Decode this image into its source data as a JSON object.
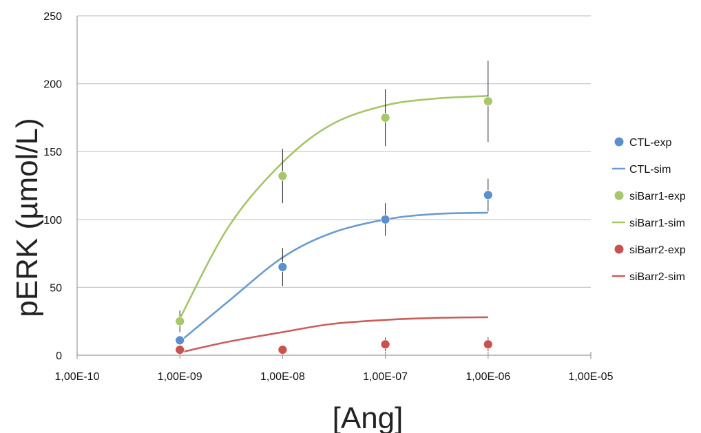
{
  "chart_data": {
    "type": "scatter",
    "xlabel": "[Ang]",
    "ylabel": "pERK (µmol/L)",
    "x_scale": "log",
    "xlim": [
      1e-10,
      1e-05
    ],
    "ylim": [
      0,
      250
    ],
    "x_tick_values": [
      1e-10,
      1e-09,
      1e-08,
      1e-07,
      1e-06,
      1e-05
    ],
    "x_tick_labels": [
      "1,00E-10",
      "1,00E-09",
      "1,00E-08",
      "1,00E-07",
      "1,00E-06",
      "1,00E-05"
    ],
    "y_ticks": [
      0,
      50,
      100,
      150,
      200,
      250
    ],
    "y_tick_labels": [
      "0",
      "50",
      "100",
      "150",
      "200",
      "250"
    ],
    "grid": "horizontal",
    "legend_position": "right",
    "series": [
      {
        "name": "CTL-exp",
        "kind": "points",
        "color": "#5b8fcf",
        "x": [
          1e-09,
          1e-08,
          1e-07,
          1e-06
        ],
        "y": [
          11,
          65,
          100,
          118
        ],
        "error": [
          0,
          14,
          12,
          12
        ]
      },
      {
        "name": "CTL-sim",
        "kind": "line",
        "color": "#6a9bd1",
        "x": [
          1e-09,
          3e-09,
          1e-08,
          3e-08,
          1e-07,
          3e-07,
          1e-06
        ],
        "y": [
          10,
          40,
          72,
          90,
          100,
          104,
          105
        ]
      },
      {
        "name": "siBarr1-exp",
        "kind": "points",
        "color": "#a6c86a",
        "x": [
          1e-09,
          1e-08,
          1e-07,
          1e-06
        ],
        "y": [
          25,
          132,
          175,
          187
        ],
        "error": [
          8,
          20,
          21,
          30
        ]
      },
      {
        "name": "siBarr1-sim",
        "kind": "line",
        "color": "#a4c667",
        "x": [
          1e-09,
          3e-09,
          1e-08,
          3e-08,
          1e-07,
          3e-07,
          1e-06
        ],
        "y": [
          27,
          95,
          142,
          170,
          184,
          189,
          191
        ]
      },
      {
        "name": "siBarr2-exp",
        "kind": "points",
        "color": "#c9524f",
        "x": [
          1e-09,
          1e-08,
          1e-07,
          1e-06
        ],
        "y": [
          4,
          4,
          8,
          8
        ],
        "error": [
          3,
          3,
          5,
          5
        ]
      },
      {
        "name": "siBarr2-sim",
        "kind": "line",
        "color": "#cc5d5a",
        "x": [
          1e-09,
          3e-09,
          1e-08,
          3e-08,
          1e-07,
          3e-07,
          1e-06
        ],
        "y": [
          2,
          10,
          17,
          23,
          26,
          27.5,
          28
        ]
      }
    ]
  }
}
